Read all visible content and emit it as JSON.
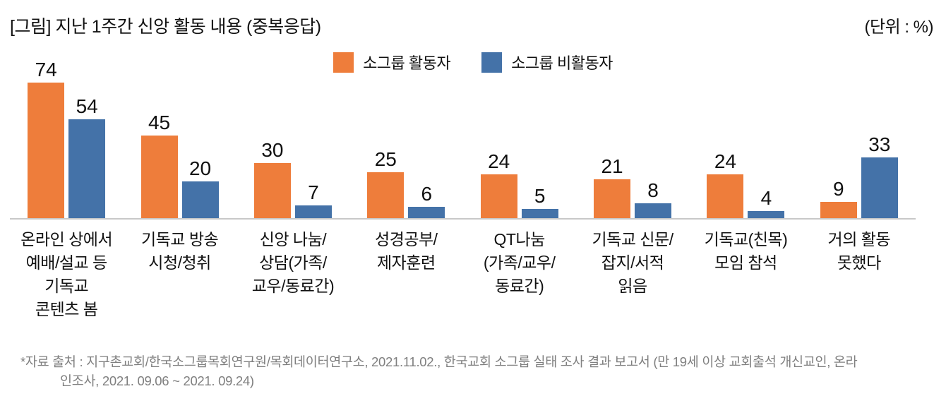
{
  "header": {
    "title": "[그림] 지난 1주간 신앙 활동 내용 (중복응답)",
    "unit": "(단위 : %)"
  },
  "legend": [
    {
      "label": "소그룹 활동자",
      "color": "#EE7D3B"
    },
    {
      "label": "소그룹 비활동자",
      "color": "#4472A8"
    }
  ],
  "chart_data": {
    "type": "bar",
    "title": "지난 1주간 신앙 활동 내용 (중복응답)",
    "unit": "%",
    "grid": false,
    "legend_position": "top-center",
    "value_labels": true,
    "ylim": [
      0,
      80
    ],
    "categories": [
      "온라인 상에서 예배/설교 등 기독교 콘텐츠 봄",
      "기독교 방송 시청/청취",
      "신앙 나눔/상담(가족/교우/동료간)",
      "성경공부/제자훈련",
      "QT나눔 (가족/교우/동료간)",
      "기독교 신문/잡지/서적 읽음",
      "기독교(친목) 모임 참석",
      "거의 활동 못했다"
    ],
    "category_lines": [
      [
        "온라인 상에서",
        "예배/설교 등",
        "기독교",
        "콘텐츠 봄"
      ],
      [
        "기독교 방송",
        "시청/청취"
      ],
      [
        "신앙 나눔/",
        "상담(가족/",
        "교우/동료간)"
      ],
      [
        "성경공부/",
        "제자훈련"
      ],
      [
        "QT나눔",
        "(가족/교우/",
        "동료간)"
      ],
      [
        "기독교 신문/",
        "잡지/서적",
        "읽음"
      ],
      [
        "기독교(친목)",
        "모임 참석"
      ],
      [
        "거의 활동",
        "못했다"
      ]
    ],
    "series": [
      {
        "name": "소그룹 활동자",
        "color": "#EE7D3B",
        "values": [
          74,
          45,
          30,
          25,
          24,
          21,
          24,
          9
        ]
      },
      {
        "name": "소그룹 비활동자",
        "color": "#4472A8",
        "values": [
          54,
          20,
          7,
          6,
          5,
          8,
          4,
          33
        ]
      }
    ],
    "axis_color": "#C8C8C8"
  },
  "footer": {
    "source_lines": [
      "*자료 출처 : 지구촌교회/한국소그룹목회연구원/목회데이터연구소, 2021.11.02., 한국교회 소그룹 실태 조사 결과 보고서 (만 19세 이상 교회출석 개신교인, 온라",
      "인조사, 2021. 09.06 ~ 2021. 09.24)"
    ]
  }
}
